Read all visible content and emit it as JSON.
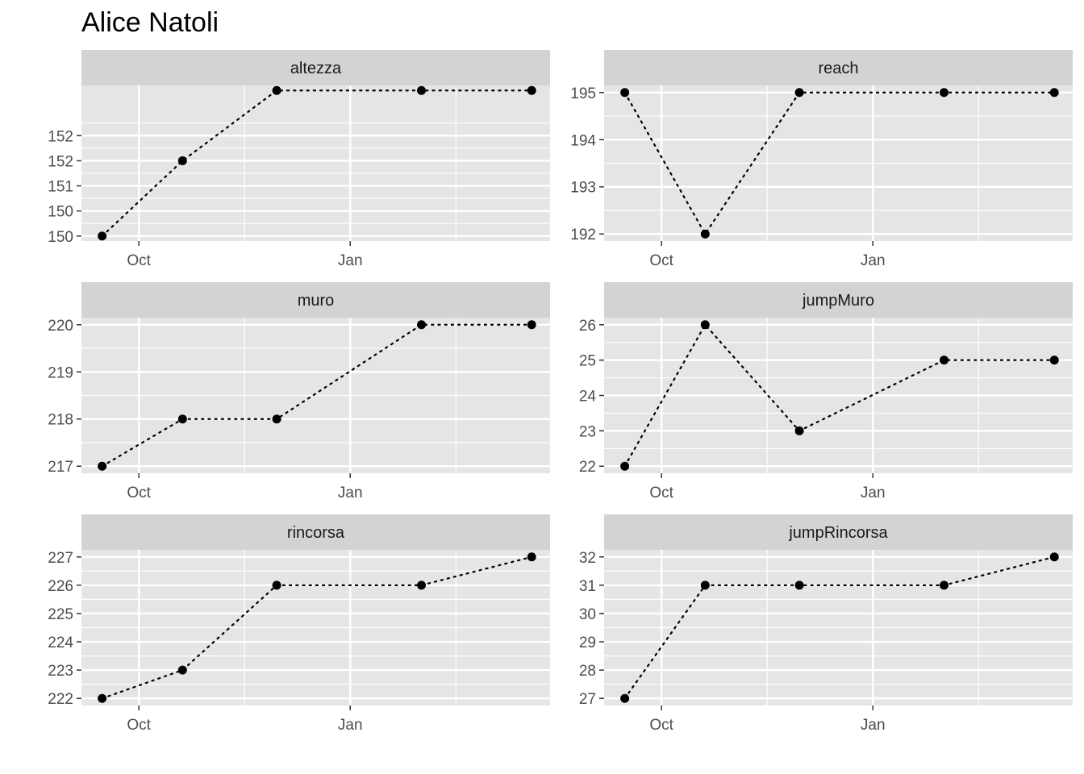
{
  "chart_data": {
    "type": "line",
    "title": "Alice Natoli",
    "x_tick_labels": [
      "Oct",
      "Jan"
    ],
    "x_axis": "date",
    "line_style": "dotted",
    "colors": {
      "panel_background": "#e5e5e5",
      "strip_background": "#d3d3d3",
      "grid": "#ffffff",
      "points": "#000000",
      "line": "#000000",
      "tick_text": "#4d4d4d",
      "strip_text": "#1a1a1a"
    },
    "panels": [
      {
        "name": "altezza",
        "x": [
          "2023-09-15",
          "2023-10-20",
          "2023-11-30",
          "2024-02-01",
          "2024-03-20"
        ],
        "y": [
          149.5,
          151.0,
          152.4,
          152.4,
          152.4
        ],
        "y_tick_labels": [
          "150",
          "150",
          "151",
          "152",
          "152"
        ],
        "ylim": [
          149.4,
          152.5
        ]
      },
      {
        "name": "reach",
        "x": [
          "2023-09-15",
          "2023-10-20",
          "2023-11-30",
          "2024-02-01",
          "2024-03-20"
        ],
        "y": [
          195,
          192,
          195,
          195,
          195
        ],
        "y_tick_labels": [
          "192",
          "193",
          "194",
          "195"
        ],
        "ylim": [
          191.85,
          195.15
        ]
      },
      {
        "name": "muro",
        "x": [
          "2023-09-15",
          "2023-10-20",
          "2023-11-30",
          "2024-02-01",
          "2024-03-20"
        ],
        "y": [
          217,
          218,
          218,
          220,
          220
        ],
        "y_tick_labels": [
          "217",
          "218",
          "219",
          "220"
        ],
        "ylim": [
          216.85,
          220.15
        ]
      },
      {
        "name": "jumpMuro",
        "x": [
          "2023-09-15",
          "2023-10-20",
          "2023-11-30",
          "2024-02-01",
          "2024-03-20"
        ],
        "y": [
          22,
          26,
          23,
          25,
          25
        ],
        "y_tick_labels": [
          "22",
          "23",
          "24",
          "25",
          "26"
        ],
        "ylim": [
          21.8,
          26.2
        ]
      },
      {
        "name": "rincorsa",
        "x": [
          "2023-09-15",
          "2023-10-20",
          "2023-11-30",
          "2024-02-01",
          "2024-03-20"
        ],
        "y": [
          222,
          223,
          226,
          226,
          227
        ],
        "y_tick_labels": [
          "222",
          "223",
          "224",
          "225",
          "226",
          "227"
        ],
        "ylim": [
          221.75,
          227.25
        ]
      },
      {
        "name": "jumpRincorsa",
        "x": [
          "2023-09-15",
          "2023-10-20",
          "2023-11-30",
          "2024-02-01",
          "2024-03-20"
        ],
        "y": [
          27,
          31,
          31,
          31,
          32
        ],
        "y_tick_labels": [
          "27",
          "28",
          "29",
          "30",
          "31",
          "32"
        ],
        "ylim": [
          26.75,
          32.25
        ]
      }
    ]
  }
}
